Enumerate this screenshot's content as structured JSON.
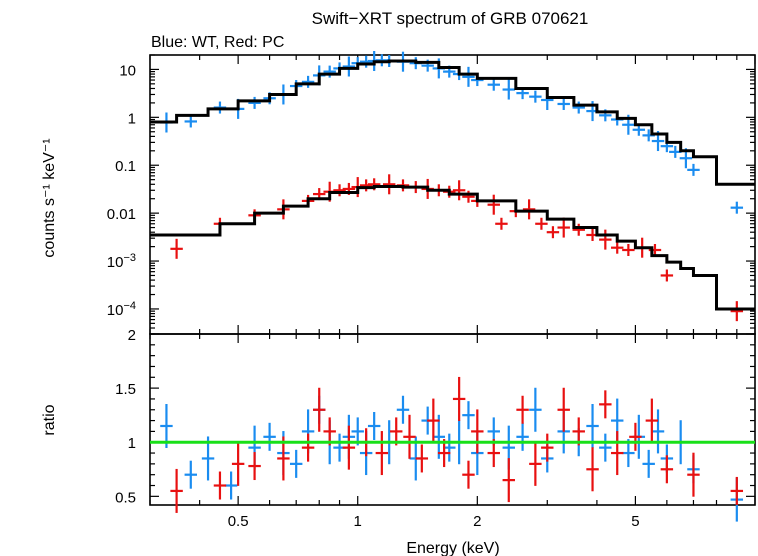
{
  "chart_data": [
    {
      "type": "scatter",
      "title": "Swift−XRT spectrum of GRB 070621",
      "subtitle": "Blue: WT, Red: PC",
      "xlabel": "",
      "ylabel": "counts s⁻¹ keV⁻¹",
      "xscale": "log",
      "yscale": "log",
      "xlim": [
        0.3,
        10
      ],
      "ylim": [
        3e-05,
        20
      ],
      "x_ticks": [],
      "y_ticks": [
        {
          "value": 10,
          "label": "10"
        },
        {
          "value": 1,
          "label": "1"
        },
        {
          "value": 0.1,
          "label": "0.1"
        },
        {
          "value": 0.01,
          "label": "0.01"
        },
        {
          "value": 0.001,
          "label": "10",
          "sup": "−3"
        },
        {
          "value": 0.0001,
          "label": "10",
          "sup": "−4"
        }
      ],
      "series": [
        {
          "mode": "WT",
          "color": "#1a8cf0",
          "points": [
            [
              0.33,
              0.78
            ],
            [
              0.38,
              0.82
            ],
            [
              0.45,
              1.6
            ],
            [
              0.5,
              1.5
            ],
            [
              0.55,
              2.0
            ],
            [
              0.6,
              2.5
            ],
            [
              0.65,
              3.0
            ],
            [
              0.7,
              4.5
            ],
            [
              0.75,
              5.5
            ],
            [
              0.8,
              7.5
            ],
            [
              0.85,
              9.0
            ],
            [
              0.9,
              10.5
            ],
            [
              0.95,
              11.5
            ],
            [
              1.0,
              13.5
            ],
            [
              1.05,
              14.5
            ],
            [
              1.1,
              15.0
            ],
            [
              1.15,
              15.5
            ],
            [
              1.2,
              15.0
            ],
            [
              1.3,
              14.5
            ],
            [
              1.4,
              13.5
            ],
            [
              1.5,
              12.0
            ],
            [
              1.6,
              10.5
            ],
            [
              1.7,
              9.0
            ],
            [
              1.8,
              8.0
            ],
            [
              1.9,
              7.0
            ],
            [
              2.0,
              6.0
            ],
            [
              2.2,
              4.8
            ],
            [
              2.4,
              3.8
            ],
            [
              2.6,
              3.2
            ],
            [
              2.8,
              2.7
            ],
            [
              3.0,
              2.3
            ],
            [
              3.3,
              1.9
            ],
            [
              3.6,
              1.6
            ],
            [
              3.9,
              1.35
            ],
            [
              4.2,
              1.1
            ],
            [
              4.5,
              0.9
            ],
            [
              4.8,
              0.7
            ],
            [
              5.1,
              0.55
            ],
            [
              5.4,
              0.42
            ],
            [
              5.7,
              0.32
            ],
            [
              6.0,
              0.25
            ],
            [
              6.3,
              0.19
            ],
            [
              6.7,
              0.14
            ],
            [
              7.0,
              0.08
            ],
            [
              9.0,
              0.013
            ]
          ]
        },
        {
          "mode": "PC",
          "color": "#e81010",
          "points": [
            [
              0.35,
              0.0018
            ],
            [
              0.45,
              0.006
            ],
            [
              0.55,
              0.009
            ],
            [
              0.65,
              0.012
            ],
            [
              0.75,
              0.018
            ],
            [
              0.8,
              0.025
            ],
            [
              0.85,
              0.028
            ],
            [
              0.9,
              0.03
            ],
            [
              0.95,
              0.032
            ],
            [
              1.0,
              0.035
            ],
            [
              1.05,
              0.038
            ],
            [
              1.1,
              0.04
            ],
            [
              1.2,
              0.04
            ],
            [
              1.3,
              0.038
            ],
            [
              1.4,
              0.035
            ],
            [
              1.5,
              0.032
            ],
            [
              1.6,
              0.03
            ],
            [
              1.7,
              0.028
            ],
            [
              1.8,
              0.03
            ],
            [
              1.9,
              0.022
            ],
            [
              2.0,
              0.018
            ],
            [
              2.2,
              0.015
            ],
            [
              2.3,
              0.006
            ],
            [
              2.5,
              0.011
            ],
            [
              2.7,
              0.012
            ],
            [
              2.9,
              0.006
            ],
            [
              3.1,
              0.004
            ],
            [
              3.3,
              0.005
            ],
            [
              3.6,
              0.0045
            ],
            [
              3.9,
              0.0035
            ],
            [
              4.2,
              0.0028
            ],
            [
              4.5,
              0.0019
            ],
            [
              4.8,
              0.0017
            ],
            [
              5.2,
              0.0019
            ],
            [
              5.6,
              0.0017
            ],
            [
              6.0,
              0.0005
            ],
            [
              9.0,
              9e-05
            ]
          ]
        }
      ],
      "model": {
        "color": "#000000",
        "points": [
          [
            0.3,
            0.8
          ],
          [
            0.35,
            1.1
          ],
          [
            0.42,
            1.5
          ],
          [
            0.5,
            2.2
          ],
          [
            0.6,
            3.0
          ],
          [
            0.7,
            5.0
          ],
          [
            0.8,
            8.0
          ],
          [
            0.9,
            10.5
          ],
          [
            1.0,
            13.0
          ],
          [
            1.1,
            14.5
          ],
          [
            1.2,
            15.0
          ],
          [
            1.4,
            14.0
          ],
          [
            1.6,
            11.0
          ],
          [
            1.8,
            8.0
          ],
          [
            2.0,
            6.5
          ],
          [
            2.5,
            4.0
          ],
          [
            3.0,
            2.6
          ],
          [
            3.5,
            1.8
          ],
          [
            4.0,
            1.3
          ],
          [
            4.5,
            0.95
          ],
          [
            5.0,
            0.7
          ],
          [
            5.5,
            0.45
          ],
          [
            6.0,
            0.3
          ],
          [
            6.5,
            0.2
          ],
          [
            7.0,
            0.15
          ],
          [
            8.0,
            0.04
          ],
          [
            10.0,
            0.04
          ]
        ],
        "points_pc": [
          [
            0.3,
            0.0035
          ],
          [
            0.45,
            0.006
          ],
          [
            0.55,
            0.01
          ],
          [
            0.65,
            0.014
          ],
          [
            0.75,
            0.02
          ],
          [
            0.85,
            0.027
          ],
          [
            1.0,
            0.034
          ],
          [
            1.1,
            0.036
          ],
          [
            1.3,
            0.035
          ],
          [
            1.5,
            0.03
          ],
          [
            1.7,
            0.025
          ],
          [
            2.0,
            0.018
          ],
          [
            2.5,
            0.011
          ],
          [
            3.0,
            0.0075
          ],
          [
            3.5,
            0.005
          ],
          [
            4.0,
            0.0035
          ],
          [
            4.5,
            0.0026
          ],
          [
            5.0,
            0.0019
          ],
          [
            5.5,
            0.0013
          ],
          [
            6.0,
            0.00095
          ],
          [
            6.5,
            0.0007
          ],
          [
            7.0,
            0.0005
          ],
          [
            8.0,
            0.0001
          ],
          [
            10.0,
            0.0001
          ]
        ]
      }
    },
    {
      "type": "scatter",
      "xlabel": "Energy (keV)",
      "ylabel": "ratio",
      "xscale": "log",
      "xlim": [
        0.3,
        10
      ],
      "ylim": [
        0.42,
        2.0
      ],
      "x_ticks": [
        {
          "value": 0.5,
          "label": "0.5"
        },
        {
          "value": 1,
          "label": "1"
        },
        {
          "value": 2,
          "label": "2"
        },
        {
          "value": 5,
          "label": "5"
        }
      ],
      "y_ticks": [
        {
          "value": 0.5,
          "label": "0.5"
        },
        {
          "value": 1,
          "label": "1"
        },
        {
          "value": 1.5,
          "label": "1.5"
        },
        {
          "value": 2,
          "label": "2"
        }
      ],
      "reference_line": {
        "value": 1,
        "color": "#18e018"
      },
      "series": [
        {
          "mode": "WT",
          "color": "#1a8cf0",
          "points": [
            [
              0.33,
              1.15
            ],
            [
              0.38,
              0.7
            ],
            [
              0.42,
              0.85
            ],
            [
              0.48,
              0.6
            ],
            [
              0.55,
              0.95
            ],
            [
              0.6,
              1.05
            ],
            [
              0.65,
              0.9
            ],
            [
              0.7,
              0.8
            ],
            [
              0.75,
              1.1
            ],
            [
              0.8,
              1.3
            ],
            [
              0.85,
              1.0
            ],
            [
              0.9,
              0.95
            ],
            [
              0.95,
              1.05
            ],
            [
              1.0,
              1.1
            ],
            [
              1.05,
              0.9
            ],
            [
              1.1,
              1.15
            ],
            [
              1.2,
              1.0
            ],
            [
              1.3,
              1.3
            ],
            [
              1.4,
              0.85
            ],
            [
              1.5,
              1.2
            ],
            [
              1.6,
              1.05
            ],
            [
              1.7,
              0.95
            ],
            [
              1.8,
              1.0
            ],
            [
              1.9,
              1.25
            ],
            [
              2.0,
              0.9
            ],
            [
              2.2,
              1.1
            ],
            [
              2.4,
              0.95
            ],
            [
              2.6,
              1.05
            ],
            [
              2.8,
              1.3
            ],
            [
              3.0,
              0.85
            ],
            [
              3.3,
              1.1
            ],
            [
              3.6,
              1.0
            ],
            [
              3.9,
              1.15
            ],
            [
              4.2,
              0.95
            ],
            [
              4.5,
              1.2
            ],
            [
              4.8,
              0.9
            ],
            [
              5.1,
              1.05
            ],
            [
              5.4,
              0.8
            ],
            [
              5.7,
              1.1
            ],
            [
              6.0,
              0.85
            ],
            [
              6.5,
              1.0
            ],
            [
              7.0,
              0.75
            ],
            [
              9.0,
              0.47
            ]
          ]
        },
        {
          "mode": "PC",
          "color": "#e81010",
          "points": [
            [
              0.35,
              0.55
            ],
            [
              0.45,
              0.6
            ],
            [
              0.5,
              0.8
            ],
            [
              0.55,
              0.78
            ],
            [
              0.65,
              0.85
            ],
            [
              0.75,
              0.95
            ],
            [
              0.8,
              1.3
            ],
            [
              0.85,
              1.1
            ],
            [
              0.95,
              0.95
            ],
            [
              1.05,
              1.0
            ],
            [
              1.15,
              0.9
            ],
            [
              1.25,
              1.1
            ],
            [
              1.35,
              1.05
            ],
            [
              1.45,
              0.85
            ],
            [
              1.55,
              1.2
            ],
            [
              1.65,
              0.9
            ],
            [
              1.8,
              1.4
            ],
            [
              1.9,
              0.7
            ],
            [
              2.0,
              1.1
            ],
            [
              2.2,
              0.9
            ],
            [
              2.4,
              0.65
            ],
            [
              2.6,
              1.3
            ],
            [
              2.8,
              0.8
            ],
            [
              3.0,
              0.95
            ],
            [
              3.3,
              1.3
            ],
            [
              3.6,
              1.1
            ],
            [
              3.9,
              0.75
            ],
            [
              4.2,
              1.35
            ],
            [
              4.5,
              0.9
            ],
            [
              5.0,
              1.05
            ],
            [
              5.5,
              1.2
            ],
            [
              6.0,
              0.75
            ],
            [
              7.0,
              0.7
            ],
            [
              9.0,
              0.55
            ]
          ]
        }
      ]
    }
  ]
}
